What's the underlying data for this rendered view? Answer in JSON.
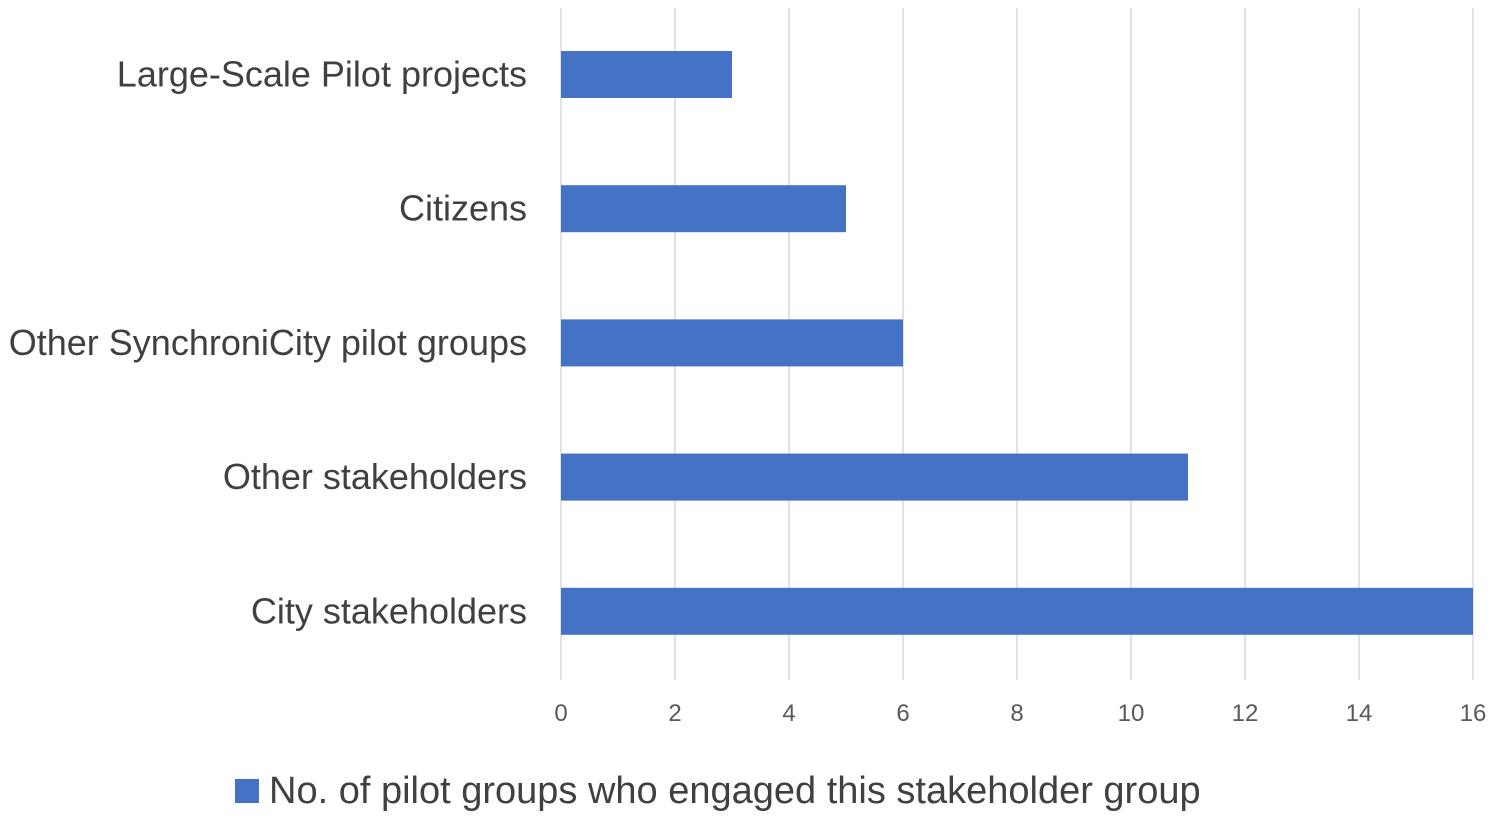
{
  "chart_data": {
    "type": "bar",
    "orientation": "horizontal",
    "categories": [
      "Large-Scale Pilot projects",
      "Citizens",
      "Other SynchroniCity pilot groups",
      "Other stakeholders",
      "City stakeholders"
    ],
    "series": [
      {
        "name": "No. of pilot groups who engaged this stakeholder group",
        "values": [
          3,
          5,
          6,
          11,
          16
        ],
        "color": "#4472C4"
      }
    ],
    "xlim": [
      0,
      16
    ],
    "xticks": [
      0,
      2,
      4,
      6,
      8,
      10,
      12,
      14,
      16
    ],
    "grid": "vertical",
    "grid_color": "#D9D9D9",
    "legend_position": "bottom"
  }
}
